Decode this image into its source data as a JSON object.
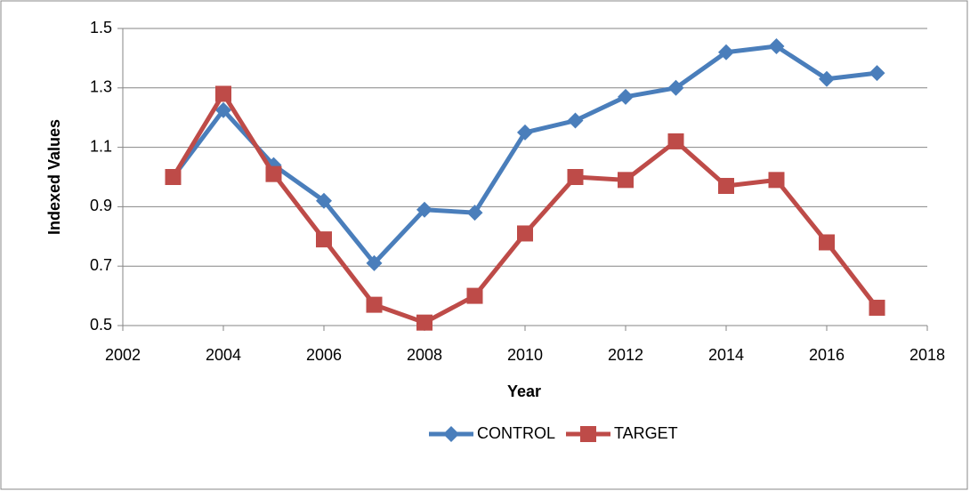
{
  "chart_data": {
    "type": "line",
    "x_label": "Year",
    "y_label": "Indexed Values",
    "x": [
      2003,
      2004,
      2005,
      2006,
      2007,
      2008,
      2009,
      2010,
      2011,
      2012,
      2013,
      2014,
      2015,
      2016,
      2017
    ],
    "series": [
      {
        "name": "CONTROL",
        "color": "#4a7ebb",
        "marker": "diamond",
        "values": [
          1.0,
          1.225,
          1.04,
          0.92,
          0.71,
          0.89,
          0.88,
          1.15,
          1.19,
          1.27,
          1.3,
          1.42,
          1.44,
          1.33,
          1.35
        ]
      },
      {
        "name": "TARGET",
        "color": "#be4b48",
        "marker": "square",
        "values": [
          1.0,
          1.28,
          1.01,
          0.79,
          0.57,
          0.51,
          0.6,
          0.81,
          1.0,
          0.99,
          1.12,
          0.97,
          0.99,
          0.78,
          0.56
        ]
      }
    ],
    "xlim": [
      2002,
      2018
    ],
    "xticks": [
      2002,
      2004,
      2006,
      2008,
      2010,
      2012,
      2014,
      2016,
      2018
    ],
    "ylim": [
      0.5,
      1.5
    ],
    "yticks": [
      0.5,
      0.7,
      0.9,
      1.1,
      1.3,
      1.5
    ],
    "grid": true,
    "legend": "bottom"
  }
}
